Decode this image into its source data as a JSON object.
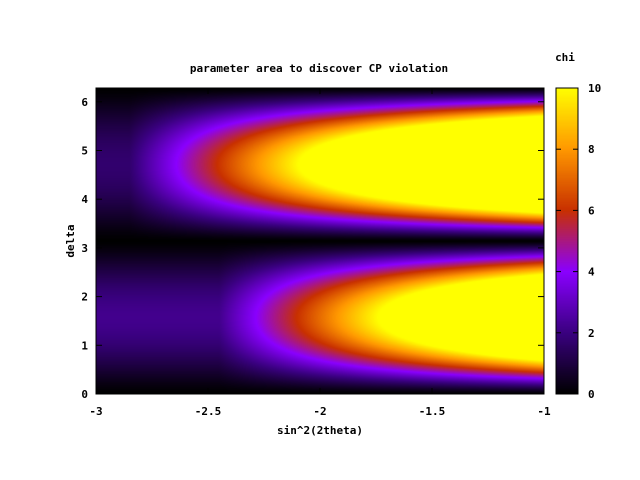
{
  "chart_data": {
    "type": "heatmap",
    "title": "parameter area to discover CP violation",
    "xlabel": "sin^2(2theta)",
    "ylabel": "delta",
    "xlim": [
      -3,
      -1
    ],
    "ylim": [
      0,
      6.283
    ],
    "x_ticks": [
      -3,
      -2.5,
      -2,
      -1.5,
      -1
    ],
    "x_tick_labels": [
      "-3",
      "-2.5",
      "-2",
      "-1.5",
      "-1"
    ],
    "y_ticks": [
      0,
      1,
      2,
      3,
      4,
      5,
      6
    ],
    "y_tick_labels": [
      "0",
      "1",
      "2",
      "3",
      "4",
      "5",
      "6"
    ],
    "colorbar": {
      "label": "chi",
      "range": [
        0,
        10
      ],
      "ticks": [
        0,
        2,
        4,
        6,
        8,
        10
      ],
      "tick_labels": [
        "0",
        "2",
        "4",
        "6",
        "8",
        "10"
      ]
    },
    "palette": [
      "#000000",
      "#3a0080",
      "#8a00ff",
      "#c83000",
      "#ff9800",
      "#ffff00"
    ],
    "grid": false,
    "legend": "colorbar-right",
    "model": {
      "description_values": {
        "chi_max": 10,
        "zero_lines_delta": [
          0,
          3.14159,
          6.28318
        ],
        "lower_lobe_peak_delta": 1.57,
        "upper_lobe_peak_delta": 4.71,
        "lower_lobe_tip_x": -2.45,
        "upper_lobe_tip_x": -2.85
      }
    }
  }
}
